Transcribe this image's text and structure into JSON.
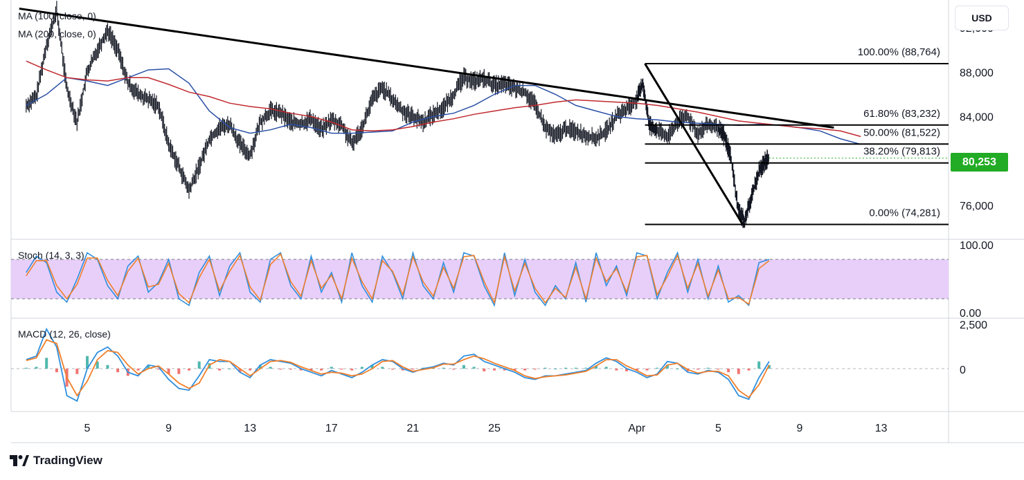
{
  "currency_button": "USD",
  "legends": {
    "ma100": "MA (100, close, 0)",
    "ma200": "MA (200, close, 0)",
    "stoch": "Stoch (14, 3, 3)",
    "macd": "MACD (12, 26, close)"
  },
  "last_price": "80,253",
  "brand": "TradingView",
  "colors": {
    "ma100": "#2a4fa6",
    "ma200": "#c0282d",
    "stoch_k": "#2e8fde",
    "stoch_d": "#f07f2a",
    "stoch_band": "#e8cffa",
    "macd": "#2e8fde",
    "signal": "#f07f2a",
    "hist_up": "#26a69a",
    "hist_down": "#ef5350",
    "last_price": "#22ab24",
    "candles": "#131722"
  },
  "chart_data": [
    {
      "type": "line",
      "panel": "price",
      "instrument_unit": "USD",
      "x_tick_labels": [
        "5",
        "9",
        "13",
        "17",
        "21",
        "25",
        "Apr",
        "5",
        "9",
        "13"
      ],
      "y_ticks": [
        76000,
        80000,
        84000,
        88000,
        92000
      ],
      "y_tick_labels": [
        "76,000",
        "80,000",
        "84,000",
        "88,000",
        "92,000"
      ],
      "ylim": [
        73000,
        94500
      ],
      "x": [
        2,
        3,
        4,
        5,
        6,
        7,
        8,
        9,
        10,
        11,
        12,
        13,
        14,
        15,
        16,
        17,
        18,
        19,
        20,
        21,
        22,
        23,
        24,
        25,
        26,
        27,
        28,
        29,
        30,
        31,
        32,
        33,
        34,
        35,
        36,
        37,
        38,
        39,
        40,
        41,
        42,
        43,
        44
      ],
      "series": [
        {
          "name": "MA (100, close, 0)",
          "values": [
            85000,
            86000,
            87500,
            87200,
            86800,
            87500,
            88200,
            88300,
            87000,
            84500,
            83000,
            82500,
            82800,
            83300,
            83000,
            82500,
            82500,
            82600,
            82700,
            83500,
            84000,
            84300,
            85000,
            86000,
            86800,
            86800,
            86000,
            85000,
            84500,
            84000,
            83800,
            83700,
            83500,
            83400,
            83300,
            83200,
            83300,
            83200,
            83000,
            82700,
            82000,
            81500,
            null
          ]
        },
        {
          "name": "MA (200, close, 0)",
          "values": [
            89000,
            88200,
            87500,
            87300,
            87200,
            87500,
            87500,
            86900,
            86200,
            85800,
            85200,
            84900,
            84700,
            84300,
            84000,
            83500,
            82800,
            82700,
            82800,
            83100,
            83500,
            83800,
            84200,
            84500,
            84800,
            85000,
            85300,
            85500,
            85400,
            85300,
            85200,
            85000,
            84700,
            84400,
            84000,
            83600,
            83400,
            83200,
            83000,
            82900,
            82700,
            82200,
            null
          ]
        }
      ],
      "price_path": [
        [
          2,
          85000
        ],
        [
          2.5,
          85800
        ],
        [
          3,
          90500
        ],
        [
          3.5,
          93500
        ],
        [
          4,
          86500
        ],
        [
          4.5,
          83500
        ],
        [
          5,
          88000
        ],
        [
          5.5,
          90000
        ],
        [
          6,
          91800
        ],
        [
          6.5,
          90000
        ],
        [
          7,
          87000
        ],
        [
          7.5,
          86000
        ],
        [
          8,
          85500
        ],
        [
          8.5,
          85000
        ],
        [
          9,
          81500
        ],
        [
          9.5,
          79500
        ],
        [
          10,
          77300
        ],
        [
          10.5,
          79500
        ],
        [
          11,
          82000
        ],
        [
          11.5,
          83000
        ],
        [
          12,
          83300
        ],
        [
          12.5,
          81500
        ],
        [
          13,
          80500
        ],
        [
          13.5,
          83500
        ],
        [
          14,
          84500
        ],
        [
          14.5,
          84300
        ],
        [
          15,
          83500
        ],
        [
          15.5,
          83300
        ],
        [
          16,
          83800
        ],
        [
          16.5,
          82800
        ],
        [
          17,
          83700
        ],
        [
          17.5,
          83200
        ],
        [
          18,
          81500
        ],
        [
          18.5,
          83000
        ],
        [
          19,
          85500
        ],
        [
          19.5,
          86600
        ],
        [
          20,
          85500
        ],
        [
          20.5,
          84500
        ],
        [
          21,
          84000
        ],
        [
          21.5,
          83500
        ],
        [
          22,
          84200
        ],
        [
          22.5,
          84800
        ],
        [
          23,
          86000
        ],
        [
          23.5,
          87500
        ],
        [
          24,
          87200
        ],
        [
          24.5,
          87400
        ],
        [
          25,
          86800
        ],
        [
          25.5,
          86900
        ],
        [
          26,
          86500
        ],
        [
          26.5,
          86200
        ],
        [
          27,
          85000
        ],
        [
          27.5,
          83000
        ],
        [
          28,
          82200
        ],
        [
          28.5,
          82900
        ],
        [
          29,
          82700
        ],
        [
          29.5,
          82300
        ],
        [
          30,
          82000
        ],
        [
          30.5,
          82700
        ],
        [
          31,
          84000
        ],
        [
          31.5,
          84700
        ],
        [
          32,
          85500
        ],
        [
          32.3,
          87000
        ],
        [
          32.6,
          83300
        ],
        [
          33,
          82800
        ],
        [
          33.5,
          82100
        ],
        [
          34,
          83500
        ],
        [
          34.5,
          84000
        ],
        [
          35,
          82500
        ],
        [
          35.5,
          83200
        ],
        [
          36,
          82900
        ],
        [
          36.3,
          82200
        ],
        [
          36.6,
          80500
        ],
        [
          37,
          75500
        ],
        [
          37.3,
          74600
        ],
        [
          37.6,
          76500
        ],
        [
          38,
          79000
        ],
        [
          38.3,
          80000
        ],
        [
          38.5,
          80253
        ]
      ],
      "last_value": 80253,
      "last_value_label": "80,253",
      "trendline": {
        "from": [
          2,
          93600
        ],
        "to": [
          41,
          83000
        ]
      },
      "swing_line": {
        "from": [
          32.4,
          88764
        ],
        "to": [
          37.2,
          74281
        ]
      },
      "fibonacci": [
        {
          "label": "100.00% (88,764)",
          "value": 88764
        },
        {
          "label": "61.80% (83,232)",
          "value": 83232
        },
        {
          "label": "50.00% (81,522)",
          "value": 81522
        },
        {
          "label": "38.20% (79,813)",
          "value": 79813
        },
        {
          "label": "0.00% (74,281)",
          "value": 74281
        }
      ],
      "fib_x_range": [
        32.4,
        45.7
      ]
    },
    {
      "type": "line",
      "panel": "stochastic",
      "title": "Stoch (14, 3, 3)",
      "y_tick_labels": [
        "100.00",
        "0.00"
      ],
      "ylim": [
        0,
        100
      ],
      "bands": [
        20,
        80
      ],
      "x": [
        2,
        2.5,
        3,
        3.5,
        4,
        4.5,
        5,
        5.5,
        6,
        6.5,
        7,
        7.5,
        8,
        8.5,
        9,
        9.5,
        10,
        10.5,
        11,
        11.5,
        12,
        12.5,
        13,
        13.5,
        14,
        14.5,
        15,
        15.5,
        16,
        16.5,
        17,
        17.5,
        18,
        18.5,
        19,
        19.5,
        20,
        20.5,
        21,
        21.5,
        22,
        22.5,
        23,
        23.5,
        24,
        24.5,
        25,
        25.5,
        26,
        26.5,
        27,
        27.5,
        28,
        28.5,
        29,
        29.5,
        30,
        30.5,
        31,
        31.5,
        32,
        32.5,
        33,
        33.5,
        34,
        34.5,
        35,
        35.5,
        36,
        36.5,
        37,
        37.5,
        38,
        38.5
      ],
      "series": [
        {
          "name": "%K",
          "values": [
            60,
            85,
            75,
            30,
            15,
            50,
            90,
            80,
            40,
            20,
            70,
            85,
            30,
            45,
            80,
            20,
            10,
            60,
            85,
            25,
            70,
            90,
            30,
            15,
            80,
            90,
            40,
            20,
            85,
            30,
            60,
            15,
            90,
            40,
            15,
            85,
            60,
            20,
            90,
            40,
            20,
            75,
            30,
            90,
            85,
            40,
            10,
            90,
            25,
            80,
            30,
            10,
            40,
            20,
            75,
            15,
            90,
            40,
            70,
            25,
            90,
            85,
            20,
            60,
            90,
            30,
            80,
            20,
            70,
            15,
            25,
            10,
            75,
            80
          ]
        },
        {
          "name": "%D",
          "values": [
            55,
            78,
            78,
            40,
            20,
            42,
            82,
            82,
            48,
            25,
            62,
            82,
            38,
            42,
            74,
            28,
            14,
            52,
            80,
            32,
            62,
            86,
            38,
            18,
            72,
            88,
            46,
            24,
            78,
            36,
            56,
            20,
            82,
            46,
            20,
            78,
            62,
            26,
            84,
            46,
            24,
            68,
            36,
            84,
            86,
            46,
            14,
            84,
            32,
            74,
            36,
            14,
            36,
            22,
            68,
            20,
            82,
            46,
            66,
            30,
            84,
            86,
            26,
            54,
            86,
            36,
            74,
            24,
            64,
            20,
            22,
            12,
            66,
            78
          ]
        }
      ]
    },
    {
      "type": "line",
      "panel": "macd",
      "title": "MACD (12, 26, close)",
      "y_tick_labels": [
        "2,500",
        "0"
      ],
      "ylim": [
        -2200,
        2700
      ],
      "x": [
        2,
        2.5,
        3,
        3.5,
        4,
        4.5,
        5,
        5.5,
        6,
        6.5,
        7,
        7.5,
        8,
        8.5,
        9,
        9.5,
        10,
        10.5,
        11,
        11.5,
        12,
        12.5,
        13,
        13.5,
        14,
        14.5,
        15,
        15.5,
        16,
        16.5,
        17,
        17.5,
        18,
        18.5,
        19,
        19.5,
        20,
        20.5,
        21,
        21.5,
        22,
        22.5,
        23,
        23.5,
        24,
        24.5,
        25,
        25.5,
        26,
        26.5,
        27,
        27.5,
        28,
        28.5,
        29,
        29.5,
        30,
        30.5,
        31,
        31.5,
        32,
        32.5,
        33,
        33.5,
        34,
        34.5,
        35,
        35.5,
        36,
        36.5,
        37,
        37.5,
        38,
        38.5
      ],
      "series": [
        {
          "name": "MACD",
          "values": [
            500,
            700,
            2200,
            1200,
            -1500,
            -1800,
            0,
            900,
            1200,
            700,
            -200,
            -400,
            200,
            100,
            -600,
            -1100,
            -1200,
            -400,
            500,
            400,
            400,
            -200,
            -500,
            200,
            500,
            400,
            300,
            0,
            -200,
            -400,
            -100,
            -300,
            -500,
            -200,
            200,
            500,
            400,
            0,
            -200,
            0,
            100,
            300,
            200,
            700,
            800,
            400,
            200,
            0,
            -200,
            -500,
            -600,
            -400,
            -400,
            -300,
            -200,
            -100,
            300,
            600,
            400,
            0,
            -200,
            -500,
            -300,
            400,
            300,
            -200,
            -300,
            -100,
            -200,
            -600,
            -1500,
            -1700,
            -500,
            400
          ]
        },
        {
          "name": "Signal",
          "values": [
            450,
            600,
            1600,
            1400,
            -500,
            -1500,
            -700,
            500,
            1000,
            900,
            200,
            -300,
            0,
            150,
            -300,
            -800,
            -1100,
            -800,
            200,
            500,
            400,
            0,
            -400,
            0,
            400,
            450,
            350,
            100,
            -100,
            -300,
            -200,
            -250,
            -400,
            -300,
            0,
            400,
            450,
            100,
            -150,
            -50,
            50,
            250,
            250,
            500,
            700,
            550,
            300,
            100,
            -100,
            -400,
            -550,
            -450,
            -400,
            -350,
            -250,
            -150,
            150,
            500,
            500,
            150,
            -100,
            -400,
            -350,
            200,
            300,
            -50,
            -250,
            -150,
            -150,
            -400,
            -1200,
            -1600,
            -900,
            200
          ]
        }
      ],
      "histogram": [
        50,
        100,
        600,
        -200,
        -1000,
        -300,
        700,
        400,
        200,
        -200,
        -400,
        -100,
        200,
        -50,
        -300,
        -300,
        -100,
        400,
        300,
        -100,
        0,
        -200,
        -100,
        200,
        100,
        -50,
        -50,
        -100,
        -100,
        -100,
        100,
        -50,
        -100,
        100,
        200,
        100,
        -50,
        -100,
        -50,
        50,
        50,
        50,
        -50,
        200,
        100,
        -150,
        -100,
        -100,
        -100,
        -100,
        -50,
        50,
        0,
        50,
        50,
        50,
        150,
        100,
        -100,
        -150,
        -100,
        -100,
        50,
        200,
        0,
        -150,
        -50,
        50,
        -50,
        -200,
        -300,
        -100,
        400,
        200
      ]
    }
  ]
}
